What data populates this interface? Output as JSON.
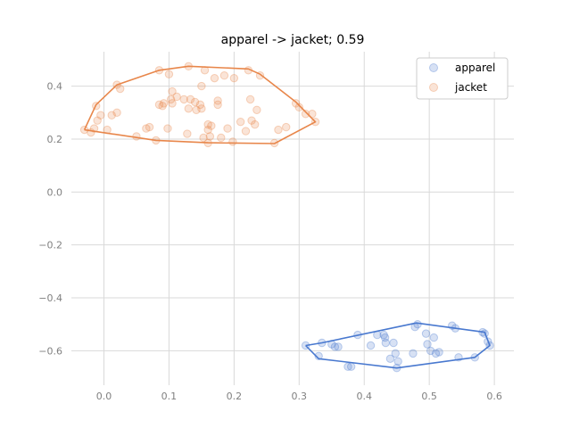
{
  "chart_data": {
    "type": "scatter",
    "title": "apparel -> jacket; 0.59",
    "xlabel": "",
    "ylabel": "",
    "xlim": [
      -0.05,
      0.63
    ],
    "ylim": [
      -0.73,
      0.53
    ],
    "x_ticks": [
      0.0,
      0.1,
      0.2,
      0.3,
      0.4,
      0.5,
      0.6
    ],
    "x_tick_labels": [
      "0.0",
      "0.1",
      "0.2",
      "0.3",
      "0.4",
      "0.5",
      "0.6"
    ],
    "y_ticks": [
      -0.6,
      -0.4,
      -0.2,
      0.0,
      0.2,
      0.4
    ],
    "y_tick_labels": [
      "−0.6",
      "−0.4",
      "−0.2",
      "0.0",
      "0.2",
      "0.4"
    ],
    "grid": true,
    "legend_position": "top-right",
    "series": [
      {
        "name": "apparel",
        "color": "#4878cf",
        "points": [
          [
            0.31,
            -0.58
          ],
          [
            0.33,
            -0.62
          ],
          [
            0.335,
            -0.57
          ],
          [
            0.35,
            -0.575
          ],
          [
            0.355,
            -0.585
          ],
          [
            0.36,
            -0.585
          ],
          [
            0.375,
            -0.66
          ],
          [
            0.38,
            -0.66
          ],
          [
            0.39,
            -0.54
          ],
          [
            0.41,
            -0.58
          ],
          [
            0.42,
            -0.54
          ],
          [
            0.43,
            -0.54
          ],
          [
            0.432,
            -0.55
          ],
          [
            0.433,
            -0.57
          ],
          [
            0.44,
            -0.63
          ],
          [
            0.445,
            -0.57
          ],
          [
            0.448,
            -0.61
          ],
          [
            0.452,
            -0.64
          ],
          [
            0.45,
            -0.665
          ],
          [
            0.475,
            -0.61
          ],
          [
            0.478,
            -0.51
          ],
          [
            0.482,
            -0.5
          ],
          [
            0.495,
            -0.535
          ],
          [
            0.497,
            -0.575
          ],
          [
            0.502,
            -0.6
          ],
          [
            0.507,
            -0.55
          ],
          [
            0.51,
            -0.61
          ],
          [
            0.515,
            -0.605
          ],
          [
            0.535,
            -0.505
          ],
          [
            0.54,
            -0.515
          ],
          [
            0.545,
            -0.625
          ],
          [
            0.57,
            -0.625
          ],
          [
            0.582,
            -0.53
          ],
          [
            0.585,
            -0.535
          ],
          [
            0.59,
            -0.565
          ],
          [
            0.593,
            -0.58
          ]
        ],
        "hull": [
          [
            0.31,
            -0.58
          ],
          [
            0.33,
            -0.63
          ],
          [
            0.45,
            -0.665
          ],
          [
            0.57,
            -0.625
          ],
          [
            0.593,
            -0.58
          ],
          [
            0.585,
            -0.53
          ],
          [
            0.48,
            -0.495
          ],
          [
            0.335,
            -0.57
          ],
          [
            0.31,
            -0.58
          ]
        ]
      },
      {
        "name": "jacket",
        "color": "#e8864a",
        "points": [
          [
            -0.03,
            0.235
          ],
          [
            -0.02,
            0.225
          ],
          [
            -0.015,
            0.24
          ],
          [
            -0.012,
            0.325
          ],
          [
            -0.01,
            0.27
          ],
          [
            -0.005,
            0.29
          ],
          [
            0.005,
            0.235
          ],
          [
            0.012,
            0.29
          ],
          [
            0.02,
            0.3
          ],
          [
            0.02,
            0.405
          ],
          [
            0.025,
            0.39
          ],
          [
            0.05,
            0.21
          ],
          [
            0.065,
            0.24
          ],
          [
            0.07,
            0.245
          ],
          [
            0.08,
            0.195
          ],
          [
            0.085,
            0.46
          ],
          [
            0.085,
            0.33
          ],
          [
            0.09,
            0.325
          ],
          [
            0.092,
            0.335
          ],
          [
            0.098,
            0.24
          ],
          [
            0.1,
            0.445
          ],
          [
            0.103,
            0.35
          ],
          [
            0.105,
            0.38
          ],
          [
            0.105,
            0.335
          ],
          [
            0.112,
            0.36
          ],
          [
            0.123,
            0.35
          ],
          [
            0.128,
            0.22
          ],
          [
            0.13,
            0.475
          ],
          [
            0.13,
            0.315
          ],
          [
            0.133,
            0.35
          ],
          [
            0.14,
            0.34
          ],
          [
            0.142,
            0.31
          ],
          [
            0.148,
            0.33
          ],
          [
            0.15,
            0.4
          ],
          [
            0.15,
            0.315
          ],
          [
            0.153,
            0.205
          ],
          [
            0.155,
            0.46
          ],
          [
            0.16,
            0.255
          ],
          [
            0.16,
            0.235
          ],
          [
            0.16,
            0.185
          ],
          [
            0.163,
            0.21
          ],
          [
            0.165,
            0.25
          ],
          [
            0.17,
            0.43
          ],
          [
            0.175,
            0.345
          ],
          [
            0.175,
            0.33
          ],
          [
            0.18,
            0.205
          ],
          [
            0.185,
            0.44
          ],
          [
            0.19,
            0.24
          ],
          [
            0.198,
            0.19
          ],
          [
            0.2,
            0.43
          ],
          [
            0.21,
            0.265
          ],
          [
            0.218,
            0.23
          ],
          [
            0.222,
            0.46
          ],
          [
            0.225,
            0.35
          ],
          [
            0.227,
            0.27
          ],
          [
            0.232,
            0.255
          ],
          [
            0.235,
            0.31
          ],
          [
            0.24,
            0.44
          ],
          [
            0.262,
            0.185
          ],
          [
            0.268,
            0.235
          ],
          [
            0.28,
            0.245
          ],
          [
            0.295,
            0.335
          ],
          [
            0.3,
            0.32
          ],
          [
            0.31,
            0.295
          ],
          [
            0.32,
            0.295
          ],
          [
            0.325,
            0.265
          ]
        ],
        "hull": [
          [
            -0.03,
            0.235
          ],
          [
            -0.012,
            0.33
          ],
          [
            0.02,
            0.405
          ],
          [
            0.085,
            0.46
          ],
          [
            0.13,
            0.475
          ],
          [
            0.222,
            0.465
          ],
          [
            0.24,
            0.445
          ],
          [
            0.295,
            0.34
          ],
          [
            0.325,
            0.265
          ],
          [
            0.262,
            0.183
          ],
          [
            0.16,
            0.186
          ],
          [
            0.08,
            0.195
          ],
          [
            -0.03,
            0.235
          ]
        ]
      }
    ]
  }
}
